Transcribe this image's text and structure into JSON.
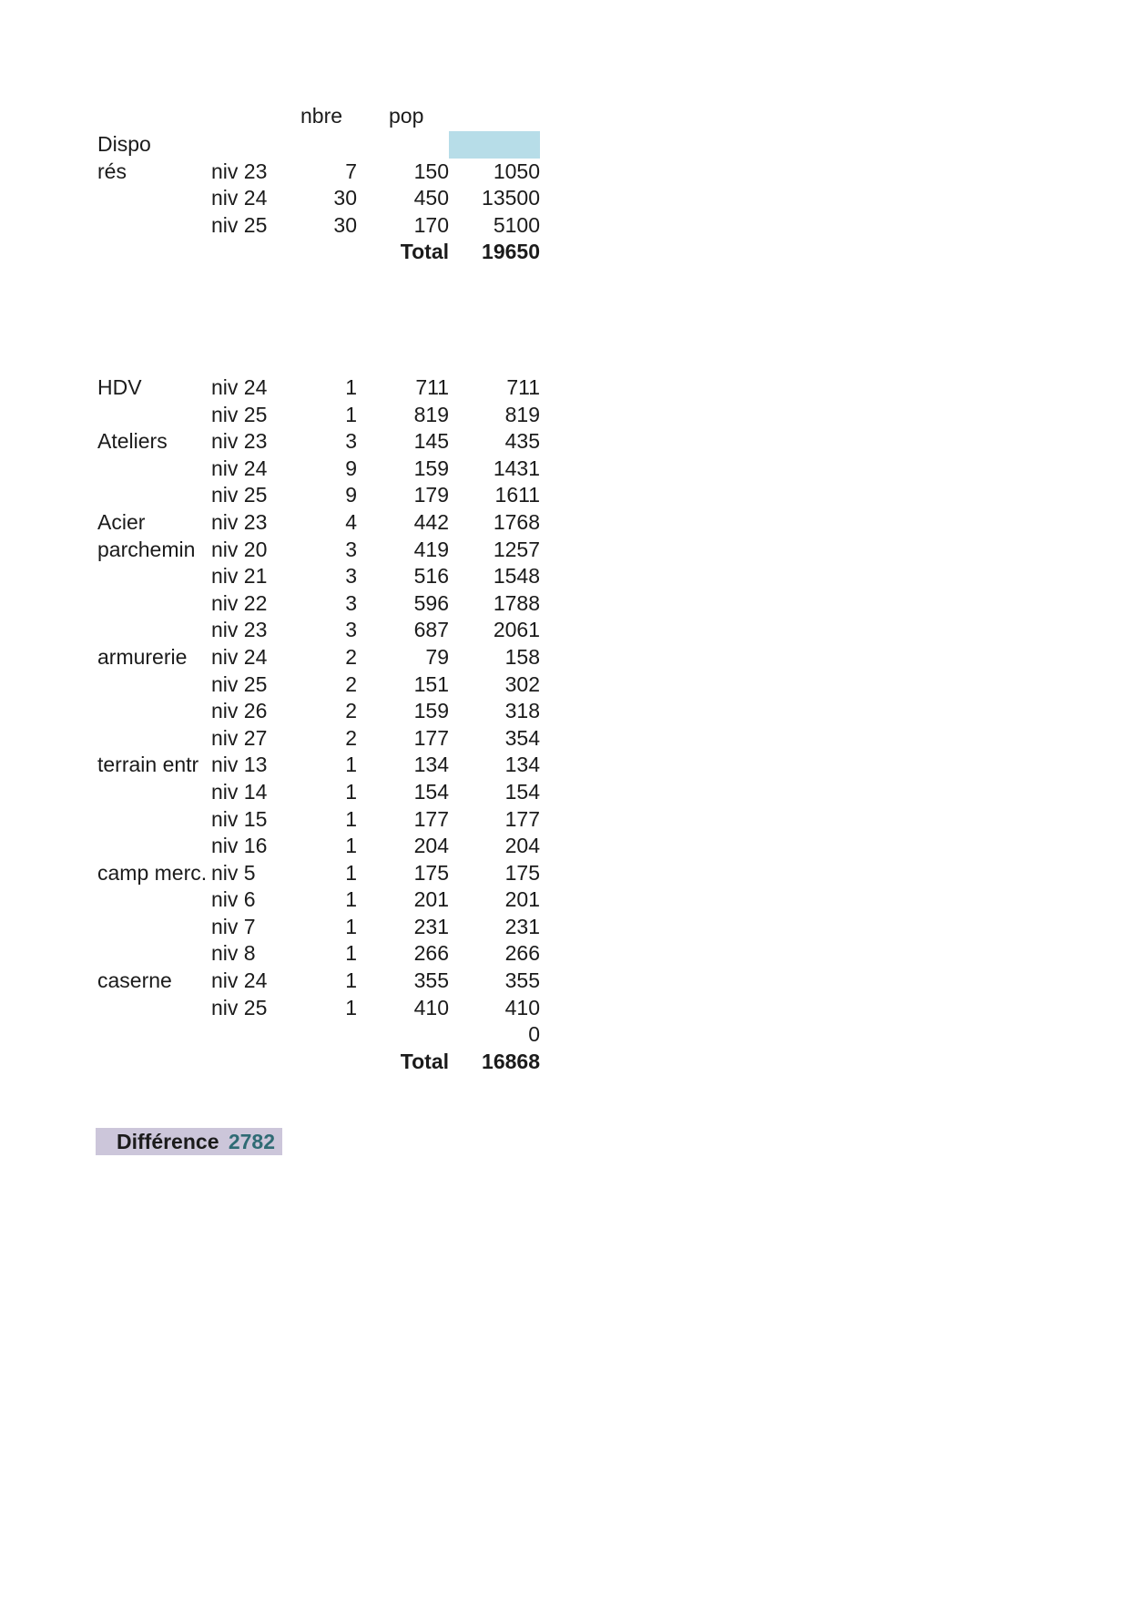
{
  "colors": {
    "text": "#1b1b1b",
    "highlight_blue": "#b7dde8",
    "highlight_lavender": "#ccc6da",
    "difference_value": "#2f6b74"
  },
  "table1": {
    "header_nbre": "nbre",
    "header_pop": "pop",
    "rows": [
      {
        "c": [
          "Dispo",
          "",
          "",
          "",
          ""
        ],
        "hl": true
      },
      {
        "c": [
          "rés",
          "niv 23",
          "7",
          "150",
          "1050"
        ]
      },
      {
        "c": [
          "",
          "niv 24",
          "30",
          "450",
          "13500"
        ]
      },
      {
        "c": [
          "",
          "niv 25",
          "30",
          "170",
          "5100"
        ]
      },
      {
        "c": [
          "",
          "",
          "",
          "Total",
          "19650"
        ],
        "bold": true
      }
    ]
  },
  "table2": {
    "rows": [
      {
        "c": [
          "HDV",
          "niv 24",
          "1",
          "711",
          "711"
        ]
      },
      {
        "c": [
          "",
          "niv 25",
          "1",
          "819",
          "819"
        ]
      },
      {
        "c": [
          "Ateliers",
          "niv 23",
          "3",
          "145",
          "435"
        ]
      },
      {
        "c": [
          "",
          "niv 24",
          "9",
          "159",
          "1431"
        ]
      },
      {
        "c": [
          "",
          "niv 25",
          "9",
          "179",
          "1611"
        ]
      },
      {
        "c": [
          "Acier",
          "niv 23",
          "4",
          "442",
          "1768"
        ]
      },
      {
        "c": [
          "parchemin",
          "niv 20",
          "3",
          "419",
          "1257"
        ]
      },
      {
        "c": [
          "",
          "niv 21",
          "3",
          "516",
          "1548"
        ]
      },
      {
        "c": [
          "",
          "niv 22",
          "3",
          "596",
          "1788"
        ]
      },
      {
        "c": [
          "",
          "niv 23",
          "3",
          "687",
          "2061"
        ]
      },
      {
        "c": [
          "armurerie",
          "niv 24",
          "2",
          "79",
          "158"
        ]
      },
      {
        "c": [
          "",
          "niv 25",
          "2",
          "151",
          "302"
        ]
      },
      {
        "c": [
          "",
          "niv 26",
          "2",
          "159",
          "318"
        ]
      },
      {
        "c": [
          "",
          "niv 27",
          "2",
          "177",
          "354"
        ]
      },
      {
        "c": [
          "terrain entr",
          "niv 13",
          "1",
          "134",
          "134"
        ]
      },
      {
        "c": [
          "",
          "niv 14",
          "1",
          "154",
          "154"
        ]
      },
      {
        "c": [
          "",
          "niv 15",
          "1",
          "177",
          "177"
        ]
      },
      {
        "c": [
          "",
          "niv 16",
          "1",
          "204",
          "204"
        ]
      },
      {
        "c": [
          "camp merc.",
          "niv 5",
          "1",
          "175",
          "175"
        ]
      },
      {
        "c": [
          "",
          "niv 6",
          "1",
          "201",
          "201"
        ]
      },
      {
        "c": [
          "",
          "niv 7",
          "1",
          "231",
          "231"
        ]
      },
      {
        "c": [
          "",
          "niv 8",
          "1",
          "266",
          "266"
        ]
      },
      {
        "c": [
          "caserne",
          "niv 24",
          "1",
          "355",
          "355"
        ]
      },
      {
        "c": [
          "",
          "niv 25",
          "1",
          "410",
          "410"
        ]
      },
      {
        "c": [
          "",
          "",
          "",
          "",
          "0"
        ]
      },
      {
        "c": [
          "",
          "",
          "",
          "Total",
          "16868"
        ],
        "bold": true
      }
    ]
  },
  "difference": {
    "label": "Différence",
    "value": "2782"
  }
}
